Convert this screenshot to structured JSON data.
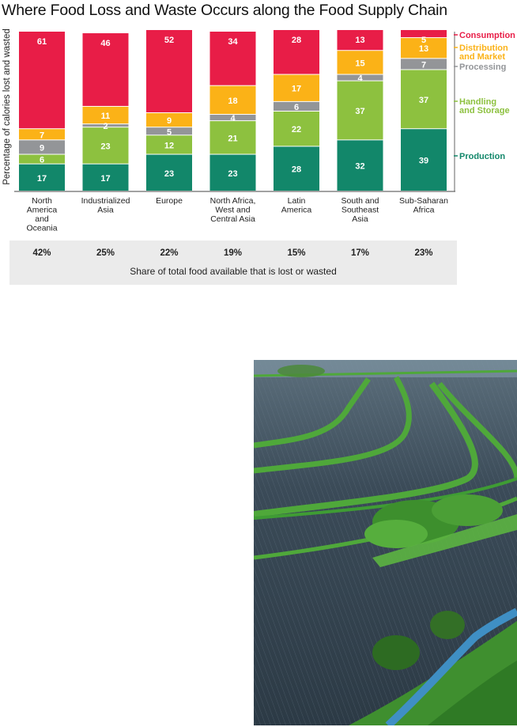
{
  "chart_data": {
    "type": "bar",
    "stacked": true,
    "orientation": "vertical",
    "title": "Where Food Loss and Waste Occurs along the Food Supply Chain",
    "xlabel": "",
    "ylabel": "Percentage of calories lost and wasted",
    "ylim": [
      0,
      100
    ],
    "grid": false,
    "legend_position": "right",
    "categories": [
      "North America and Oceania",
      "Industrialized Asia",
      "Europe",
      "North Africa, West and Central Asia",
      "Latin America",
      "South and Southeast Asia",
      "Sub-Saharan Africa"
    ],
    "category_lines": [
      [
        "North",
        "America",
        "and",
        "Oceania"
      ],
      [
        "Industrialized",
        "Asia"
      ],
      [
        "Europe"
      ],
      [
        "North Africa,",
        "West and",
        "Central Asia"
      ],
      [
        "Latin",
        "America"
      ],
      [
        "South and",
        "Southeast",
        "Asia"
      ],
      [
        "Sub-Saharan",
        "Africa"
      ]
    ],
    "series": [
      {
        "name": "Production",
        "color": "#12876a",
        "values": [
          17,
          17,
          23,
          23,
          28,
          32,
          39
        ]
      },
      {
        "name": "Handling and Storage",
        "color": "#8dc13f",
        "values": [
          6,
          23,
          12,
          21,
          22,
          37,
          37
        ]
      },
      {
        "name": "Processing",
        "color": "#939598",
        "values": [
          9,
          2,
          5,
          4,
          6,
          4,
          7
        ]
      },
      {
        "name": "Distribution and Market",
        "color": "#fbb217",
        "values": [
          7,
          11,
          9,
          18,
          17,
          15,
          13
        ]
      },
      {
        "name": "Consumption",
        "color": "#e81d47",
        "values": [
          61,
          46,
          52,
          34,
          28,
          13,
          5
        ]
      }
    ],
    "legend": [
      {
        "lines": [
          "Consumption"
        ],
        "color": "#e81d47"
      },
      {
        "lines": [
          "Distribution",
          "and Market"
        ],
        "color": "#fbb217"
      },
      {
        "lines": [
          "Processing"
        ],
        "color": "#939598"
      },
      {
        "lines": [
          "Handling",
          "and Storage"
        ],
        "color": "#8dc13f"
      },
      {
        "lines": [
          "Production"
        ],
        "color": "#12876a"
      }
    ],
    "share_of_total": [
      "42%",
      "25%",
      "22%",
      "19%",
      "15%",
      "17%",
      "23%"
    ],
    "share_caption": "Share of total food available that is lost or wasted"
  },
  "photo": {
    "subject": "aerial-farmland-with-grass-waterways",
    "colors": {
      "field": "#3a4a58",
      "grass": "#4fa83a",
      "water": "#3f8fc4",
      "sky": "#7d94a3"
    }
  }
}
